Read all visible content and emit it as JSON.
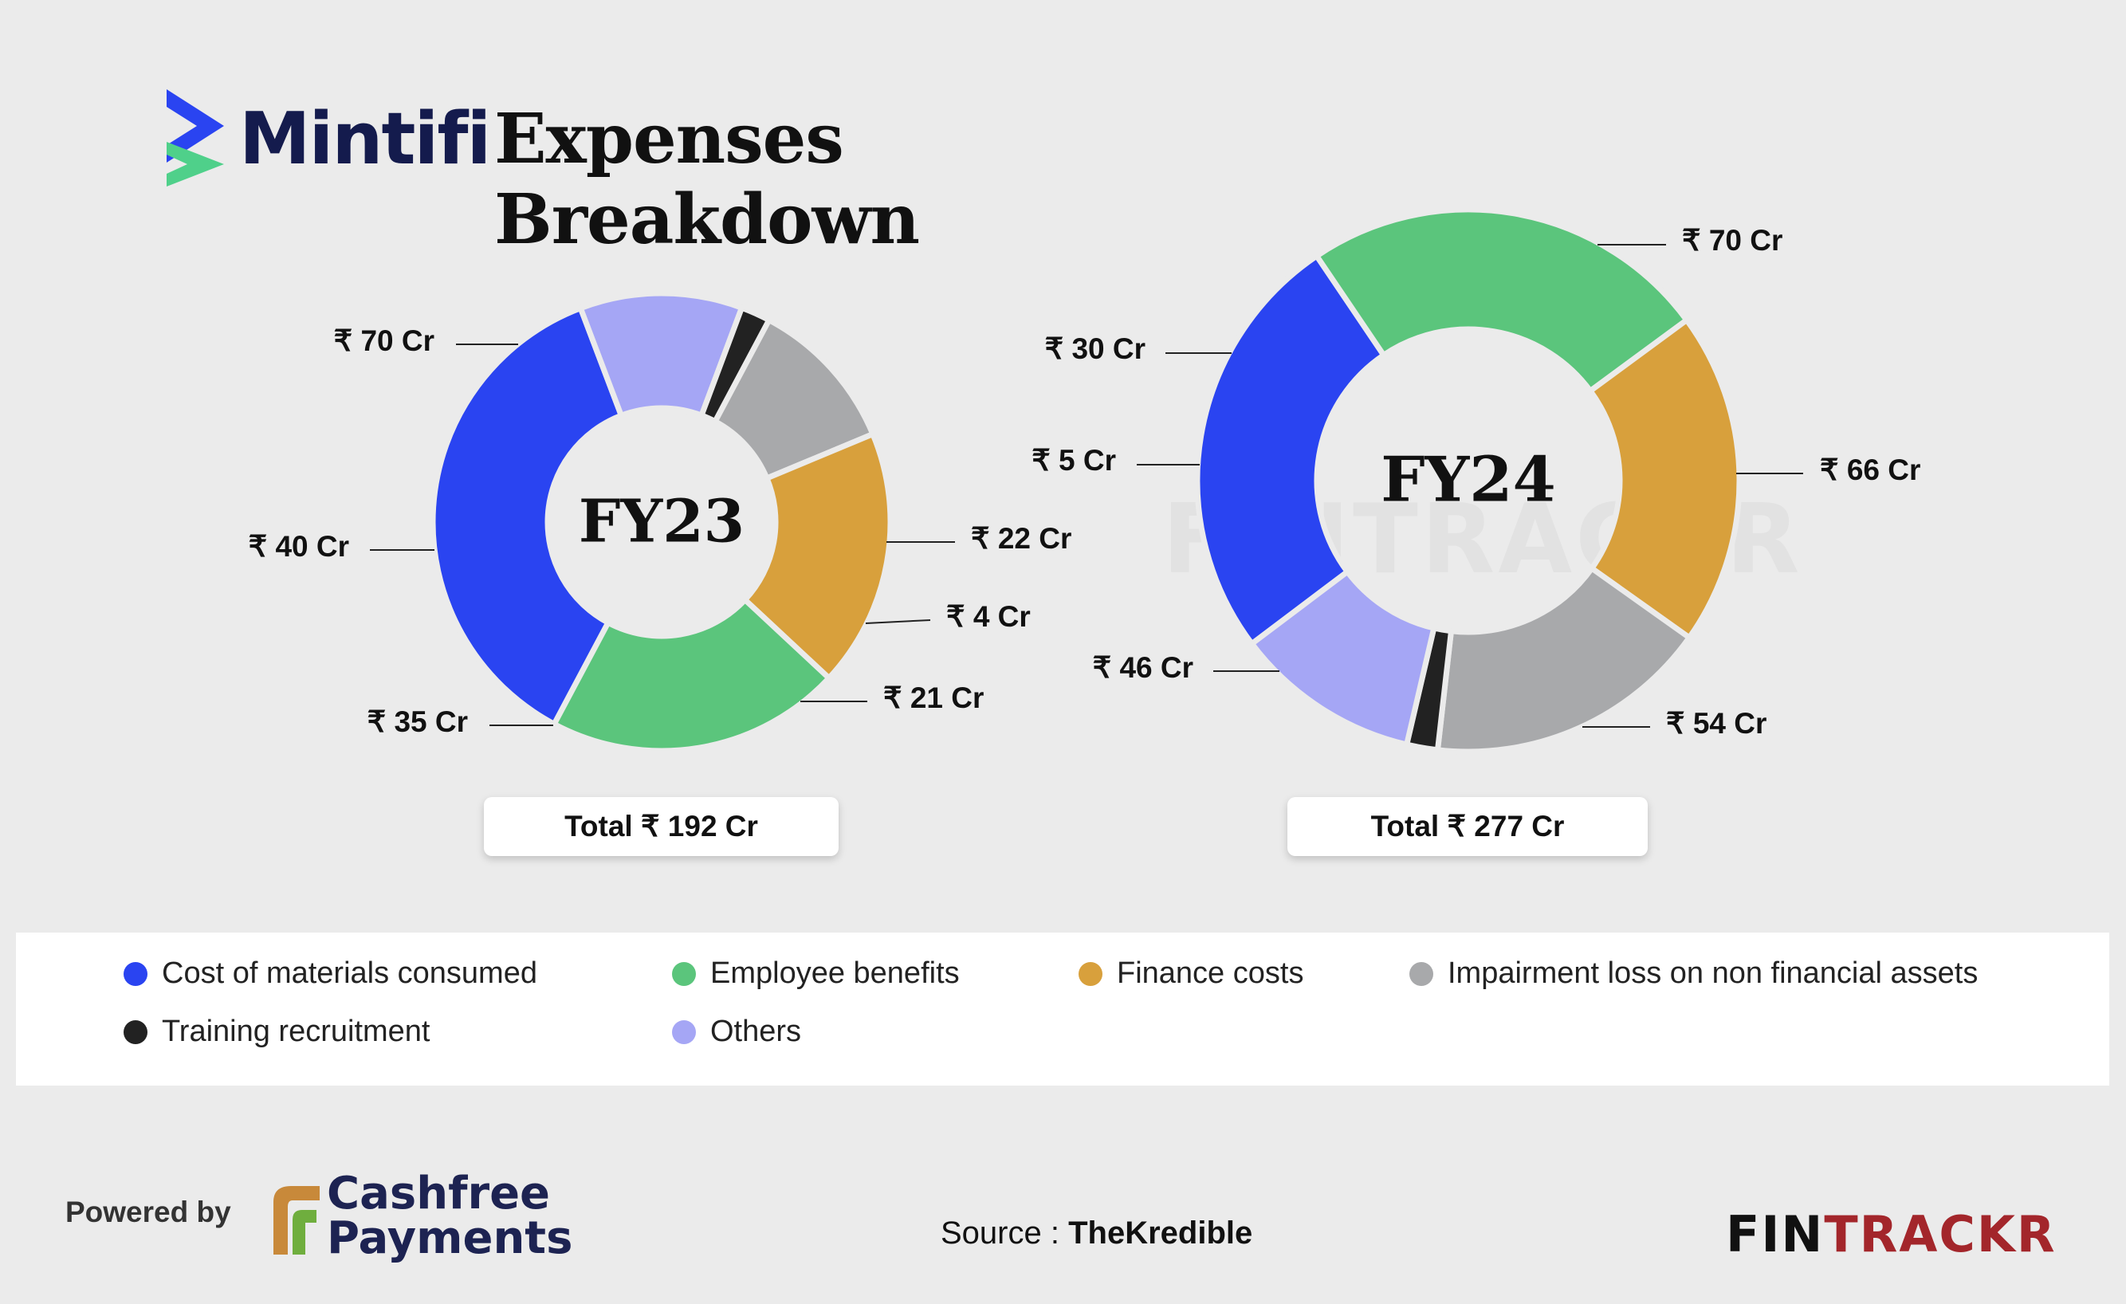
{
  "header": {
    "brand_name": "Mintifi",
    "title": "Expenses Breakdown"
  },
  "chart_data": [
    {
      "type": "donut",
      "center_label": "FY23",
      "total_label": "Total ₹ 192 Cr",
      "categories": [
        "Cost of materials consumed",
        "Others",
        "Training recruitment",
        "Impairment loss on non financial assets",
        "Finance costs",
        "Employee benefits"
      ],
      "values": [
        70,
        22,
        4,
        21,
        35,
        40
      ],
      "data_labels": [
        "₹ 70 Cr",
        "₹ 22 Cr",
        "₹ 4 Cr",
        "₹ 21 Cr",
        "₹ 35 Cr",
        "₹ 40 Cr"
      ],
      "unit": "Cr"
    },
    {
      "type": "donut",
      "center_label": "FY24",
      "total_label": "Total ₹ 277 Cr",
      "categories": [
        "Cost of materials consumed",
        "Employee benefits",
        "Finance costs",
        "Impairment loss on non financial assets",
        "Training recruitment",
        "Others"
      ],
      "values": [
        70,
        66,
        54,
        46,
        5,
        30
      ],
      "data_labels": [
        "₹ 70 Cr",
        "₹ 66 Cr",
        "₹ 54 Cr",
        "₹ 46 Cr",
        "₹ 5 Cr",
        "₹ 30 Cr"
      ],
      "unit": "Cr"
    }
  ],
  "colors": {
    "Cost of materials consumed": "#2a44f1",
    "Employee benefits": "#5bc57c",
    "Finance costs": "#d8a03c",
    "Impairment loss on non financial assets": "#a8a9ab",
    "Training recruitment": "#222222",
    "Others": "#a5a6f5"
  },
  "legend": {
    "placement": "bottom",
    "items": [
      {
        "label": "Cost of materials consumed",
        "color": "#2a44f1"
      },
      {
        "label": "Employee benefits",
        "color": "#5bc57c"
      },
      {
        "label": "Finance costs",
        "color": "#d8a03c"
      },
      {
        "label": "Impairment loss on non financial assets",
        "color": "#a8a9ab"
      },
      {
        "label": "Training recruitment",
        "color": "#222222"
      },
      {
        "label": "Others",
        "color": "#a5a6f5"
      }
    ]
  },
  "footer": {
    "powered_by": "Powered by",
    "sponsor_line1": "Cashfree",
    "sponsor_line2": "Payments",
    "source_prefix": "Source : ",
    "source_name": "TheKredible",
    "logo_fin": "FIN",
    "logo_trackr": "TRACKR",
    "watermark": "FINTRACKR"
  }
}
